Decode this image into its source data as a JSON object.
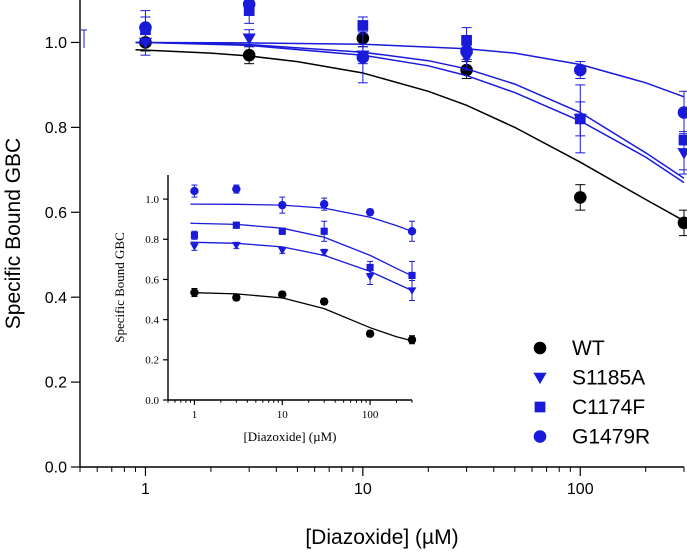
{
  "chart_data": [
    {
      "type": "scatter",
      "panel": "main",
      "title": "",
      "xlabel": "[Diazoxide] (µM)",
      "ylabel": "Specific Bound GBC",
      "xscale": "log",
      "xlim": [
        0.5,
        300
      ],
      "ylim": [
        0.0,
        1.1
      ],
      "xticks": [
        1,
        10,
        100
      ],
      "xtick_labels": [
        "1",
        "10",
        "100"
      ],
      "yticks": [
        0.0,
        0.2,
        0.4,
        0.6,
        0.8,
        1.0
      ],
      "ytick_labels": [
        "0.0",
        "0.2",
        "0.4",
        "0.6",
        "0.8",
        "1.0"
      ],
      "legend_position": "bottom-right",
      "series": [
        {
          "name": "WT",
          "color": "#000000",
          "marker": "circle",
          "x": [
            1,
            3,
            10,
            30,
            100,
            300
          ],
          "y": [
            1.0,
            0.97,
            1.01,
            0.935,
            0.635,
            0.575
          ],
          "err": [
            0.02,
            0.02,
            0.02,
            0.02,
            0.03,
            0.03
          ],
          "fit_x": [
            0.9,
            1,
            2,
            3,
            5,
            10,
            20,
            30,
            50,
            100,
            200,
            300
          ],
          "fit_y": [
            0.983,
            0.982,
            0.975,
            0.968,
            0.955,
            0.928,
            0.885,
            0.852,
            0.8,
            0.718,
            0.63,
            0.58
          ]
        },
        {
          "name": "S1185A",
          "color": "#1a1adb",
          "marker": "triangle-down",
          "x": [
            1,
            3,
            10,
            30,
            100,
            300
          ],
          "y": [
            1.0,
            1.01,
            0.97,
            0.965,
            0.82,
            0.74
          ],
          "err": [
            0.03,
            0.02,
            0.02,
            0.03,
            0.04,
            0.05
          ],
          "fit_x": [
            0.9,
            1,
            3,
            10,
            20,
            30,
            50,
            100,
            200,
            300
          ],
          "fit_y": [
            1.0,
            1.0,
            0.995,
            0.977,
            0.957,
            0.938,
            0.902,
            0.835,
            0.74,
            0.68
          ]
        },
        {
          "name": "C1174F",
          "color": "#1a1adb",
          "marker": "square",
          "x": [
            1,
            3,
            10,
            30,
            100,
            300
          ],
          "y": [
            1.03,
            1.075,
            1.04,
            1.005,
            0.82,
            0.77
          ],
          "err": [
            0.03,
            0.03,
            0.02,
            0.03,
            0.08,
            0.07
          ],
          "fit_x": [
            0.9,
            1,
            3,
            10,
            20,
            30,
            50,
            100,
            200,
            300
          ],
          "fit_y": [
            1.0,
            1.0,
            0.993,
            0.97,
            0.945,
            0.922,
            0.882,
            0.815,
            0.73,
            0.67
          ]
        },
        {
          "name": "G1479R",
          "color": "#1a1adb",
          "marker": "circle",
          "x": [
            1,
            3,
            10,
            30,
            100,
            300
          ],
          "y": [
            1.035,
            1.09,
            0.965,
            0.98,
            0.935,
            0.835
          ],
          "err": [
            0.04,
            0.02,
            0.06,
            0.02,
            0.02,
            0.05
          ],
          "fit_x": [
            0.9,
            1,
            3,
            10,
            30,
            50,
            100,
            200,
            300
          ],
          "fit_y": [
            1.0,
            1.0,
            0.999,
            0.996,
            0.985,
            0.975,
            0.948,
            0.905,
            0.872
          ]
        }
      ]
    },
    {
      "type": "scatter",
      "panel": "inset",
      "title": "",
      "xlabel": "[Diazoxide] (µM)",
      "ylabel": "Specific Bound GBC",
      "xscale": "log",
      "xlim": [
        0.5,
        300
      ],
      "ylim": [
        0.0,
        1.12
      ],
      "xticks": [
        1,
        10,
        100
      ],
      "xtick_labels": [
        "1",
        "10",
        "100"
      ],
      "yticks": [
        0.0,
        0.2,
        0.4,
        0.6,
        0.8,
        1.0
      ],
      "ytick_labels": [
        "0.0",
        "0.2",
        "0.4",
        "0.6",
        "0.8",
        "1.0"
      ],
      "series": [
        {
          "name": "WT",
          "color": "#000000",
          "marker": "circle",
          "x": [
            1,
            3,
            10,
            30,
            100,
            300
          ],
          "y": [
            0.535,
            0.51,
            0.525,
            0.49,
            0.33,
            0.3
          ],
          "err": [
            0.02,
            0.015,
            0.015,
            0.015,
            0.015,
            0.02
          ],
          "fit_x": [
            0.9,
            1,
            3,
            10,
            30,
            100,
            200,
            300
          ],
          "fit_y": [
            0.535,
            0.534,
            0.528,
            0.508,
            0.455,
            0.36,
            0.315,
            0.295
          ]
        },
        {
          "name": "S1185A",
          "color": "#1a1adb",
          "marker": "triangle-down",
          "x": [
            1,
            3,
            10,
            30,
            100,
            300
          ],
          "y": [
            0.765,
            0.77,
            0.745,
            0.735,
            0.615,
            0.545
          ],
          "err": [
            0.02,
            0.015,
            0.015,
            0.015,
            0.04,
            0.05
          ],
          "fit_x": [
            0.9,
            1,
            3,
            10,
            30,
            100,
            200,
            300
          ],
          "fit_y": [
            0.785,
            0.785,
            0.78,
            0.762,
            0.72,
            0.64,
            0.58,
            0.545
          ]
        },
        {
          "name": "C1174F",
          "color": "#1a1adb",
          "marker": "square",
          "x": [
            1,
            3,
            10,
            30,
            100,
            300
          ],
          "y": [
            0.82,
            0.87,
            0.84,
            0.84,
            0.66,
            0.62
          ],
          "err": [
            0.02,
            0.015,
            0.015,
            0.05,
            0.03,
            0.07
          ],
          "fit_x": [
            0.9,
            1,
            3,
            10,
            30,
            100,
            200,
            300
          ],
          "fit_y": [
            0.88,
            0.879,
            0.874,
            0.855,
            0.81,
            0.72,
            0.655,
            0.618
          ]
        },
        {
          "name": "G1479R",
          "color": "#1a1adb",
          "marker": "circle",
          "x": [
            1,
            3,
            10,
            30,
            100,
            300
          ],
          "y": [
            1.04,
            1.05,
            0.97,
            0.975,
            0.935,
            0.84
          ],
          "err": [
            0.03,
            0.02,
            0.04,
            0.03,
            0.015,
            0.05
          ],
          "fit_x": [
            0.9,
            1,
            3,
            10,
            30,
            100,
            200,
            300
          ],
          "fit_y": [
            0.975,
            0.975,
            0.974,
            0.97,
            0.955,
            0.91,
            0.868,
            0.84
          ]
        }
      ]
    }
  ]
}
